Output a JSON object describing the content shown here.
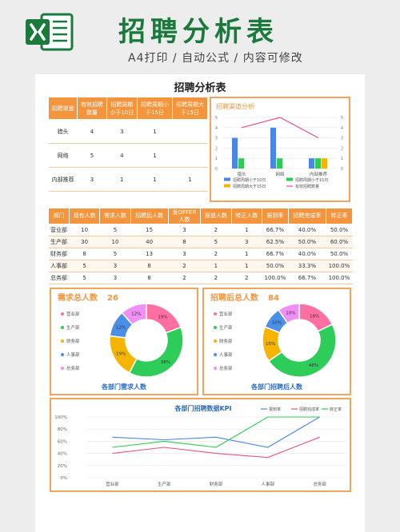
{
  "header": {
    "title": "招聘分析表",
    "subtitle": "A4打印 / 自动公式 / 内容可修改"
  },
  "sheet_title": "招聘分析表",
  "channel_table": {
    "headers": [
      "招聘渠道",
      "有效招聘\n数量",
      "招聘周期\n小于10日",
      "招聘周期小\n于15日",
      "招聘周期大\n于15日"
    ],
    "rows": [
      [
        "猎头",
        "4",
        "3",
        "1",
        ""
      ],
      [
        "网络",
        "5",
        "4",
        "1",
        ""
      ],
      [
        "内部推荐",
        "3",
        "1",
        "1",
        "1"
      ]
    ]
  },
  "dept_table": {
    "headers": [
      "部门",
      "现有人数",
      "需求人数",
      "招聘后人数",
      "发OFFER\n人数",
      "报道人数",
      "转正人数",
      "报到率",
      "招聘完成率",
      "转正率"
    ],
    "rows": [
      [
        "营业部",
        "10",
        "5",
        "15",
        "3",
        "2",
        "1",
        "66.7%",
        "40.0%",
        "50.0%"
      ],
      [
        "生产部",
        "30",
        "10",
        "40",
        "8",
        "5",
        "3",
        "62.5%",
        "50.0%",
        "60.0%"
      ],
      [
        "财务部",
        "8",
        "5",
        "13",
        "3",
        "2",
        "1",
        "66.7%",
        "40.0%",
        "50.0%"
      ],
      [
        "人事部",
        "5",
        "3",
        "8",
        "2",
        "1",
        "1",
        "50.0%",
        "33.3%",
        "100.0%"
      ],
      [
        "总务部",
        "5",
        "3",
        "8",
        "2",
        "2",
        "2",
        "100.0%",
        "66.7%",
        "100.0%"
      ]
    ]
  },
  "colors": {
    "accent_orange": "#f4943d",
    "title_green": "#1a7a3c",
    "bar_blue": "#4a86e8",
    "bar_green": "#2ecc50",
    "bar_yellow": "#f5b400",
    "line_pink": "#e8508c",
    "pie": [
      "#ff6fa1",
      "#2ecc58",
      "#f5b400",
      "#4a90e8",
      "#f08ff5"
    ]
  },
  "chart_data": [
    {
      "type": "bar",
      "title": "招聘渠道分析",
      "categories": [
        "猎头",
        "网络",
        "内部推荐"
      ],
      "series": [
        {
          "name": "招聘周期小于10日",
          "kind": "bar",
          "values": [
            3,
            4,
            1
          ]
        },
        {
          "name": "招聘周期小于15日",
          "kind": "bar",
          "values": [
            1,
            1,
            1
          ]
        },
        {
          "name": "招聘周期大于15日",
          "kind": "bar",
          "values": [
            0,
            0,
            1
          ]
        },
        {
          "name": "有效招聘数量",
          "kind": "line",
          "values": [
            4,
            5,
            3
          ]
        }
      ],
      "ylim": [
        0,
        5
      ],
      "yticks": [
        "0",
        "1",
        "2",
        "3",
        "4",
        "5"
      ]
    },
    {
      "type": "pie",
      "title": "需求总人数",
      "total": "26",
      "caption": "各部门需求人数",
      "labels": [
        "营业部",
        "生产部",
        "财务部",
        "人事部",
        "总务部"
      ],
      "values": [
        5,
        10,
        5,
        3,
        3
      ],
      "percent_labels": [
        "19%",
        "38%",
        "19%",
        "12%",
        "12%"
      ]
    },
    {
      "type": "pie",
      "title": "招聘后总人数",
      "total": "84",
      "caption": "各部门招聘后人数",
      "labels": [
        "营业部",
        "生产部",
        "财务部",
        "人事部",
        "总务部"
      ],
      "values": [
        15,
        40,
        13,
        8,
        8
      ],
      "percent_labels": [
        "18%",
        "48%",
        "15%",
        "10%",
        "10%"
      ]
    },
    {
      "type": "line",
      "title": "各部门招聘数据KPI",
      "categories": [
        "营业部",
        "生产部",
        "财务部",
        "人事部",
        "总务部"
      ],
      "series": [
        {
          "name": "报到率",
          "values": [
            66.7,
            62.5,
            66.7,
            50.0,
            100.0
          ]
        },
        {
          "name": "招聘完成率",
          "values": [
            40.0,
            50.0,
            40.0,
            33.3,
            66.7
          ]
        },
        {
          "name": "转正率",
          "values": [
            50.0,
            60.0,
            50.0,
            100.0,
            100.0
          ]
        }
      ],
      "ylim": [
        0,
        100
      ],
      "yticks": [
        "0%",
        "20%",
        "40%",
        "60%",
        "80%",
        "100%"
      ]
    }
  ]
}
